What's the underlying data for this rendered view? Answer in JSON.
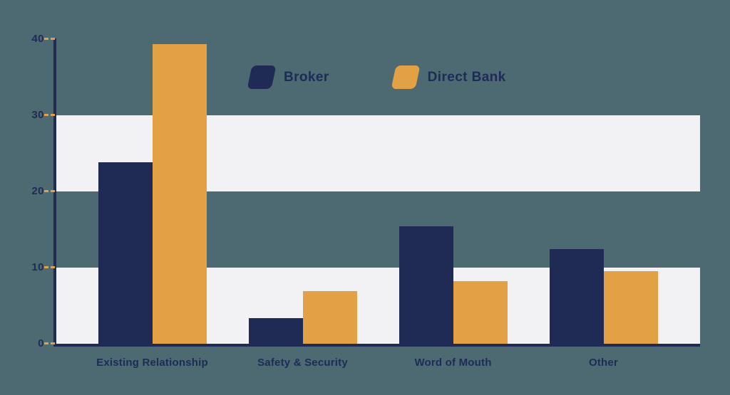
{
  "chart_data": {
    "type": "bar",
    "title": "",
    "categories": [
      "Existing Relationship",
      "Safety & Security",
      "Word of Mouth",
      "Other"
    ],
    "series": [
      {
        "name": "Broker",
        "color": "#1F2B55",
        "values": [
          23.8,
          3.4,
          15.4,
          12.4
        ]
      },
      {
        "name": "Direct Bank",
        "color": "#E3A145",
        "values": [
          39.3,
          6.9,
          8.2,
          9.5
        ]
      }
    ],
    "y_ticks": [
      0,
      10,
      20,
      30,
      40
    ],
    "ylim": [
      0,
      40
    ],
    "shaded_bands": [
      [
        20,
        30
      ],
      [
        0,
        10
      ]
    ],
    "grid": false,
    "legend_position": "top-center",
    "colors": {
      "background": "#4D6A72",
      "band": "#F2F2F4",
      "axis": "#1F2B55",
      "tick_dash": "#E3A145",
      "text": "#1F2B55"
    }
  }
}
